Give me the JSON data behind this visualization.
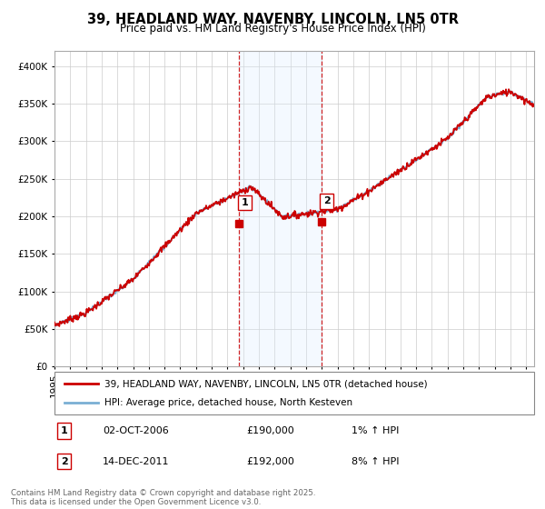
{
  "title_line1": "39, HEADLAND WAY, NAVENBY, LINCOLN, LN5 0TR",
  "title_line2": "Price paid vs. HM Land Registry's House Price Index (HPI)",
  "legend_label1": "39, HEADLAND WAY, NAVENBY, LINCOLN, LN5 0TR (detached house)",
  "legend_label2": "HPI: Average price, detached house, North Kesteven",
  "purchase1_date": "02-OCT-2006",
  "purchase1_price": "£190,000",
  "purchase1_hpi": "1% ↑ HPI",
  "purchase1_year": 2006.75,
  "purchase1_value": 190000,
  "purchase2_date": "14-DEC-2011",
  "purchase2_price": "£192,000",
  "purchase2_hpi": "8% ↑ HPI",
  "purchase2_year": 2011.96,
  "purchase2_value": 192000,
  "footer": "Contains HM Land Registry data © Crown copyright and database right 2025.\nThis data is licensed under the Open Government Licence v3.0.",
  "color_red": "#cc0000",
  "color_blue": "#7aafd4",
  "color_shade": "#ddeeff",
  "color_vline": "#cc0000",
  "ylim_min": 0,
  "ylim_max": 420000,
  "yticks": [
    0,
    50000,
    100000,
    150000,
    200000,
    250000,
    300000,
    350000,
    400000
  ],
  "xlim_min": 1995,
  "xlim_max": 2025.5
}
